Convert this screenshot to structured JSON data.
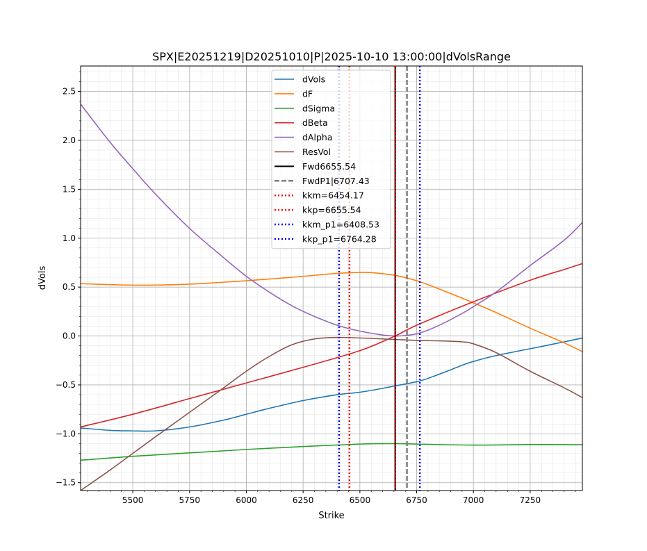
{
  "chart_data": {
    "type": "line",
    "title": "SPX|E20251219|D20251010|P|2025-10-10 13:00:00|dVolsRange",
    "xlabel": "Strike",
    "ylabel": "dVols",
    "xlim": [
      5270,
      7480
    ],
    "ylim": [
      -1.58,
      2.76
    ],
    "xticks": [
      5500,
      5750,
      6000,
      6250,
      6500,
      6750,
      7000,
      7250
    ],
    "yticks": [
      -1.5,
      -1.0,
      -0.5,
      0.0,
      0.5,
      1.0,
      1.5,
      2.0,
      2.5
    ],
    "xtick_labels": [
      "5500",
      "5750",
      "6000",
      "6250",
      "6500",
      "6750",
      "7000",
      "7250"
    ],
    "ytick_labels": [
      "−1.5",
      "−1.0",
      "−0.5",
      "0.0",
      "0.5",
      "1.0",
      "1.5",
      "2.0",
      "2.5"
    ],
    "grid": "on (major and minor)",
    "legend_position": "upper-center",
    "series": [
      {
        "name": "dVols",
        "color": "#1f77b4",
        "x": [
          5270,
          5400,
          5500,
          5600,
          5750,
          5900,
          6000,
          6100,
          6250,
          6400,
          6500,
          6600,
          6655,
          6764,
          6850,
          6950,
          7000,
          7100,
          7250,
          7400,
          7480
        ],
        "y": [
          -0.94,
          -0.965,
          -0.97,
          -0.97,
          -0.93,
          -0.86,
          -0.8,
          -0.74,
          -0.66,
          -0.6,
          -0.575,
          -0.535,
          -0.51,
          -0.46,
          -0.39,
          -0.3,
          -0.26,
          -0.2,
          -0.13,
          -0.06,
          -0.02
        ]
      },
      {
        "name": "dF",
        "color": "#ff7f0e",
        "x": [
          5270,
          5400,
          5500,
          5600,
          5750,
          5900,
          6000,
          6200,
          6400,
          6500,
          6550,
          6655,
          6750,
          6850,
          7000,
          7100,
          7250,
          7400,
          7480
        ],
        "y": [
          0.535,
          0.525,
          0.52,
          0.52,
          0.53,
          0.55,
          0.565,
          0.6,
          0.64,
          0.65,
          0.648,
          0.62,
          0.565,
          0.48,
          0.34,
          0.24,
          0.08,
          -0.07,
          -0.16
        ]
      },
      {
        "name": "dSigma",
        "color": "#2ca02c",
        "x": [
          5270,
          5500,
          5750,
          6000,
          6250,
          6500,
          6655,
          6750,
          7000,
          7250,
          7480
        ],
        "y": [
          -1.27,
          -1.23,
          -1.195,
          -1.16,
          -1.13,
          -1.105,
          -1.1,
          -1.105,
          -1.115,
          -1.11,
          -1.112
        ]
      },
      {
        "name": "dBeta",
        "color": "#d62728",
        "x": [
          5270,
          5500,
          5750,
          6000,
          6250,
          6500,
          6655,
          6750,
          7000,
          7250,
          7400,
          7480
        ],
        "y": [
          -0.93,
          -0.8,
          -0.64,
          -0.48,
          -0.32,
          -0.15,
          0.0,
          0.11,
          0.35,
          0.57,
          0.68,
          0.74
        ]
      },
      {
        "name": "dAlpha",
        "color": "#9467bd",
        "x": [
          5270,
          5400,
          5500,
          5600,
          5750,
          5900,
          6000,
          6100,
          6200,
          6300,
          6400,
          6500,
          6600,
          6655,
          6700,
          6764,
          6850,
          6950,
          7000,
          7100,
          7250,
          7400,
          7480
        ],
        "y": [
          2.37,
          1.98,
          1.71,
          1.45,
          1.1,
          0.8,
          0.61,
          0.45,
          0.31,
          0.2,
          0.11,
          0.05,
          0.01,
          0.0,
          0.005,
          0.03,
          0.11,
          0.23,
          0.3,
          0.45,
          0.72,
          0.98,
          1.16
        ]
      },
      {
        "name": "ResVol",
        "color": "#8c564b",
        "x": [
          5270,
          5400,
          5500,
          5600,
          5750,
          5900,
          6000,
          6100,
          6200,
          6300,
          6400,
          6500,
          6600,
          6655,
          6750,
          6850,
          6950,
          7000,
          7100,
          7250,
          7400,
          7480
        ],
        "y": [
          -1.58,
          -1.37,
          -1.2,
          -1.03,
          -0.78,
          -0.53,
          -0.36,
          -0.21,
          -0.09,
          -0.03,
          -0.015,
          -0.02,
          -0.03,
          -0.035,
          -0.045,
          -0.05,
          -0.06,
          -0.08,
          -0.17,
          -0.36,
          -0.53,
          -0.63
        ]
      }
    ],
    "vlines": [
      {
        "name": "Fwd6655.54",
        "x": 6655.54,
        "color": "#000000",
        "style": "solid"
      },
      {
        "name": "FwdP1|6707.43",
        "x": 6707.43,
        "color": "#808080",
        "style": "dashed"
      },
      {
        "name": "kkm=6454.17",
        "x": 6454.17,
        "color": "#ff0000",
        "style": "dotted"
      },
      {
        "name": "kkp=6655.54",
        "x": 6655.54,
        "color": "#ff0000",
        "style": "dotted"
      },
      {
        "name": "kkm_p1=6408.53",
        "x": 6408.53,
        "color": "#0000ff",
        "style": "dotted"
      },
      {
        "name": "kkp_p1=6764.28",
        "x": 6764.28,
        "color": "#0000ff",
        "style": "dotted"
      }
    ]
  }
}
